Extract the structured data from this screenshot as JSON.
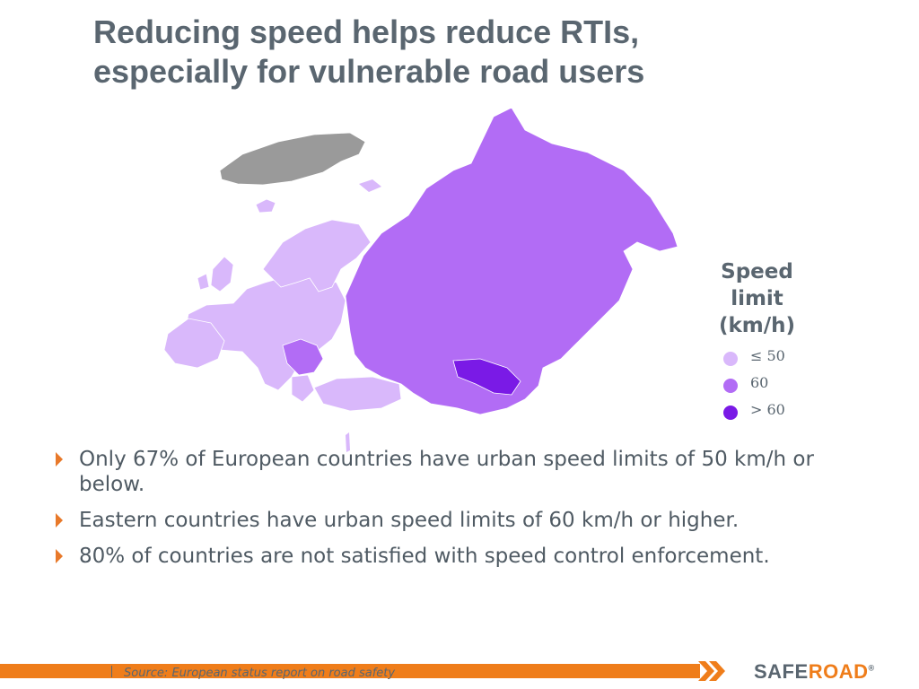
{
  "title": {
    "line1": "Reducing speed helps reduce RTIs,",
    "line2": "especially for vulnerable road users"
  },
  "legend": {
    "title_line1": "Speed",
    "title_line2": "limit",
    "title_line3": "(km/h)",
    "items": [
      {
        "label": "≤ 50",
        "color": "#d9b8fb"
      },
      {
        "label": "60",
        "color": "#b26cf5"
      },
      {
        "label": "> 60",
        "color": "#7a1ae6"
      }
    ]
  },
  "map": {
    "colors": {
      "no_data": "#9a9a9a",
      "le_50": "#d9b8fb",
      "eq_60": "#b26cf5",
      "gt_60": "#7a1ae6"
    }
  },
  "bullets": [
    "Only 67% of European countries have urban speed limits of 50 km/h or below.",
    "Eastern countries have urban speed limits of 60 km/h or higher.",
    "80% of countries are not satisfied with speed control enforcement."
  ],
  "footer": {
    "source": "Source: European status report on road safety",
    "logo_safe": "SAFE",
    "logo_road": "ROAD",
    "logo_mark": "®",
    "accent": "#ef7d1a"
  }
}
